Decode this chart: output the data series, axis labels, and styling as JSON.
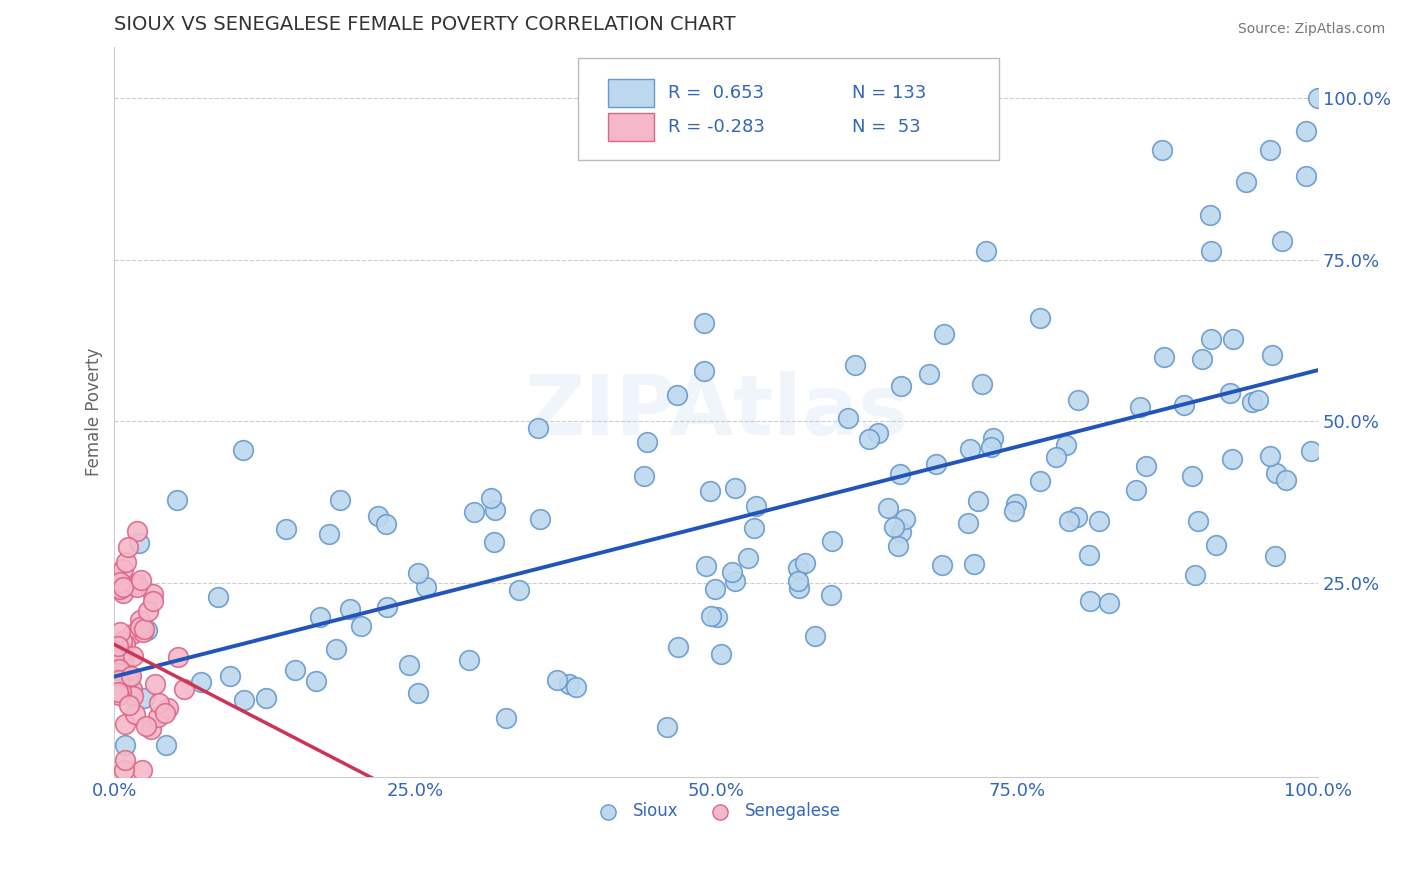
{
  "title": "SIOUX VS SENEGALESE FEMALE POVERTY CORRELATION CHART",
  "source": "Source: ZipAtlas.com",
  "ylabel": "Female Poverty",
  "xlim": [
    0,
    1
  ],
  "ylim": [
    -0.05,
    1.08
  ],
  "xticks": [
    0.0,
    0.25,
    0.5,
    0.75,
    1.0
  ],
  "yticks": [
    0.0,
    0.25,
    0.5,
    0.75,
    1.0
  ],
  "xtick_labels": [
    "0.0%",
    "25.0%",
    "50.0%",
    "75.0%",
    "100.0%"
  ],
  "ytick_labels": [
    "",
    "25.0%",
    "50.0%",
    "75.0%",
    "100.0%"
  ],
  "sioux_color": "#bdd7ee",
  "sioux_edge": "#6699cc",
  "senegalese_color": "#f4b8c8",
  "senegalese_edge": "#dd6688",
  "line_blue": "#2255bb",
  "line_pink": "#cc3355",
  "line_pink_dashed": "#e8a0b0",
  "watermark": "ZIPAtlas",
  "legend_R_sioux": "0.653",
  "legend_N_sioux": "133",
  "legend_R_senegalese": "-0.283",
  "legend_N_senegalese": "53",
  "background_color": "#ffffff",
  "grid_color": "#cccccc",
  "text_color": "#3366bb",
  "title_color": "#333333"
}
